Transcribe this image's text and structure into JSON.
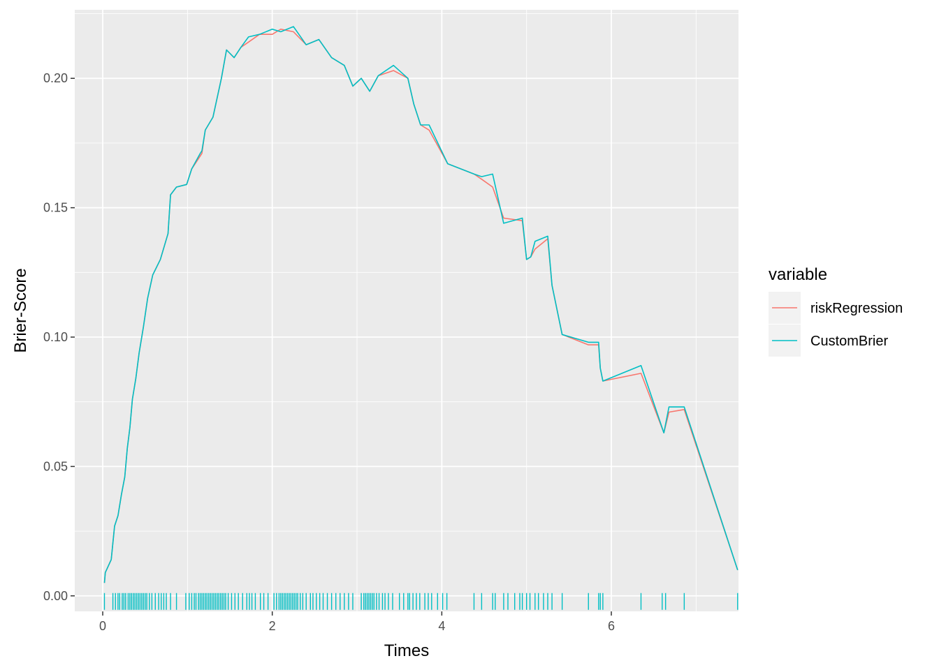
{
  "chart_data": {
    "type": "line",
    "xlabel": "Times",
    "ylabel": "Brier-Score",
    "xlim": [
      -0.33,
      7.5
    ],
    "ylim": [
      -0.006,
      0.2265
    ],
    "x_ticks": [
      0,
      2,
      4,
      6
    ],
    "x_tick_labels": [
      "0",
      "2",
      "4",
      "6"
    ],
    "y_ticks": [
      0.0,
      0.05,
      0.1,
      0.15,
      0.2
    ],
    "y_tick_labels": [
      "0.00",
      "0.05",
      "0.10",
      "0.15",
      "0.20"
    ],
    "grid": true,
    "legend": {
      "title": "variable",
      "position": "right",
      "entries": [
        "riskRegression",
        "CustomBrier"
      ]
    },
    "series": [
      {
        "name": "riskRegression",
        "color": "#F8766D",
        "points": [
          [
            0.02,
            0.005
          ],
          [
            0.03,
            0.009
          ],
          [
            0.1,
            0.014
          ],
          [
            0.14,
            0.027
          ],
          [
            0.18,
            0.031
          ],
          [
            0.22,
            0.039
          ],
          [
            0.26,
            0.046
          ],
          [
            0.29,
            0.057
          ],
          [
            0.32,
            0.065
          ],
          [
            0.35,
            0.076
          ],
          [
            0.39,
            0.084
          ],
          [
            0.43,
            0.094
          ],
          [
            0.48,
            0.104
          ],
          [
            0.53,
            0.115
          ],
          [
            0.59,
            0.124
          ],
          [
            0.68,
            0.13
          ],
          [
            0.77,
            0.14
          ],
          [
            0.8,
            0.155
          ],
          [
            0.87,
            0.158
          ],
          [
            0.99,
            0.159
          ],
          [
            1.05,
            0.165
          ],
          [
            1.15,
            0.17
          ],
          [
            1.17,
            0.171
          ],
          [
            1.21,
            0.18
          ],
          [
            1.3,
            0.185
          ],
          [
            1.4,
            0.2
          ],
          [
            1.46,
            0.211
          ],
          [
            1.55,
            0.208
          ],
          [
            1.63,
            0.212
          ],
          [
            1.72,
            0.214
          ],
          [
            1.85,
            0.217
          ],
          [
            2.0,
            0.217
          ],
          [
            2.1,
            0.219
          ],
          [
            2.25,
            0.218
          ],
          [
            2.4,
            0.213
          ],
          [
            2.55,
            0.215
          ],
          [
            2.7,
            0.208
          ],
          [
            2.85,
            0.205
          ],
          [
            2.95,
            0.197
          ],
          [
            3.05,
            0.2
          ],
          [
            3.15,
            0.195
          ],
          [
            3.25,
            0.201
          ],
          [
            3.43,
            0.203
          ],
          [
            3.6,
            0.2
          ],
          [
            3.67,
            0.19
          ],
          [
            3.75,
            0.182
          ],
          [
            3.85,
            0.18
          ],
          [
            4.07,
            0.167
          ],
          [
            4.38,
            0.163
          ],
          [
            4.47,
            0.161
          ],
          [
            4.6,
            0.158
          ],
          [
            4.73,
            0.146
          ],
          [
            4.95,
            0.145
          ],
          [
            5.0,
            0.13
          ],
          [
            5.05,
            0.131
          ],
          [
            5.1,
            0.134
          ],
          [
            5.25,
            0.138
          ],
          [
            5.3,
            0.12
          ],
          [
            5.42,
            0.101
          ],
          [
            5.73,
            0.097
          ],
          [
            5.85,
            0.097
          ],
          [
            5.87,
            0.088
          ],
          [
            5.9,
            0.083
          ],
          [
            6.35,
            0.086
          ],
          [
            6.62,
            0.063
          ],
          [
            6.68,
            0.071
          ],
          [
            6.86,
            0.072
          ],
          [
            7.49,
            0.01
          ]
        ]
      },
      {
        "name": "CustomBrier",
        "color": "#00BFC4",
        "points": [
          [
            0.02,
            0.005
          ],
          [
            0.03,
            0.009
          ],
          [
            0.1,
            0.014
          ],
          [
            0.14,
            0.027
          ],
          [
            0.18,
            0.031
          ],
          [
            0.22,
            0.039
          ],
          [
            0.26,
            0.046
          ],
          [
            0.29,
            0.057
          ],
          [
            0.32,
            0.065
          ],
          [
            0.35,
            0.076
          ],
          [
            0.39,
            0.084
          ],
          [
            0.43,
            0.094
          ],
          [
            0.48,
            0.104
          ],
          [
            0.53,
            0.115
          ],
          [
            0.59,
            0.124
          ],
          [
            0.68,
            0.13
          ],
          [
            0.77,
            0.14
          ],
          [
            0.8,
            0.155
          ],
          [
            0.87,
            0.158
          ],
          [
            0.99,
            0.159
          ],
          [
            1.05,
            0.165
          ],
          [
            1.15,
            0.171
          ],
          [
            1.17,
            0.172
          ],
          [
            1.21,
            0.18
          ],
          [
            1.3,
            0.185
          ],
          [
            1.4,
            0.2
          ],
          [
            1.46,
            0.211
          ],
          [
            1.55,
            0.208
          ],
          [
            1.63,
            0.212
          ],
          [
            1.72,
            0.216
          ],
          [
            1.85,
            0.217
          ],
          [
            2.0,
            0.219
          ],
          [
            2.1,
            0.218
          ],
          [
            2.25,
            0.22
          ],
          [
            2.4,
            0.213
          ],
          [
            2.55,
            0.215
          ],
          [
            2.7,
            0.208
          ],
          [
            2.85,
            0.205
          ],
          [
            2.95,
            0.197
          ],
          [
            3.05,
            0.2
          ],
          [
            3.15,
            0.195
          ],
          [
            3.25,
            0.201
          ],
          [
            3.43,
            0.205
          ],
          [
            3.6,
            0.2
          ],
          [
            3.67,
            0.19
          ],
          [
            3.75,
            0.182
          ],
          [
            3.85,
            0.182
          ],
          [
            4.07,
            0.167
          ],
          [
            4.38,
            0.163
          ],
          [
            4.47,
            0.162
          ],
          [
            4.6,
            0.163
          ],
          [
            4.73,
            0.144
          ],
          [
            4.95,
            0.146
          ],
          [
            5.0,
            0.13
          ],
          [
            5.05,
            0.131
          ],
          [
            5.1,
            0.137
          ],
          [
            5.25,
            0.139
          ],
          [
            5.3,
            0.12
          ],
          [
            5.42,
            0.101
          ],
          [
            5.73,
            0.098
          ],
          [
            5.85,
            0.098
          ],
          [
            5.87,
            0.088
          ],
          [
            5.9,
            0.083
          ],
          [
            6.35,
            0.089
          ],
          [
            6.62,
            0.063
          ],
          [
            6.68,
            0.073
          ],
          [
            6.86,
            0.073
          ],
          [
            7.49,
            0.01
          ]
        ]
      }
    ],
    "rug_x": [
      0.02,
      0.12,
      0.15,
      0.18,
      0.2,
      0.23,
      0.25,
      0.27,
      0.3,
      0.32,
      0.34,
      0.36,
      0.38,
      0.4,
      0.42,
      0.44,
      0.46,
      0.48,
      0.5,
      0.52,
      0.55,
      0.58,
      0.62,
      0.66,
      0.69,
      0.72,
      0.75,
      0.8,
      0.87,
      0.98,
      1.02,
      1.05,
      1.08,
      1.1,
      1.13,
      1.15,
      1.17,
      1.19,
      1.21,
      1.23,
      1.25,
      1.27,
      1.29,
      1.31,
      1.33,
      1.35,
      1.37,
      1.39,
      1.41,
      1.43,
      1.45,
      1.48,
      1.52,
      1.56,
      1.6,
      1.65,
      1.7,
      1.73,
      1.76,
      1.8,
      1.86,
      1.9,
      1.95,
      2.02,
      2.05,
      2.08,
      2.1,
      2.12,
      2.14,
      2.16,
      2.18,
      2.2,
      2.22,
      2.24,
      2.26,
      2.28,
      2.3,
      2.33,
      2.36,
      2.4,
      2.45,
      2.48,
      2.52,
      2.56,
      2.6,
      2.65,
      2.7,
      2.75,
      2.8,
      2.85,
      2.9,
      2.95,
      3.05,
      3.08,
      3.1,
      3.12,
      3.14,
      3.16,
      3.18,
      3.2,
      3.23,
      3.26,
      3.3,
      3.33,
      3.37,
      3.42,
      3.5,
      3.55,
      3.6,
      3.62,
      3.66,
      3.7,
      3.74,
      3.8,
      3.84,
      3.88,
      3.95,
      4.01,
      4.06,
      4.38,
      4.47,
      4.6,
      4.63,
      4.73,
      4.78,
      4.86,
      4.92,
      4.95,
      5.0,
      5.04,
      5.1,
      5.14,
      5.2,
      5.25,
      5.3,
      5.42,
      5.73,
      5.85,
      5.87,
      5.9,
      6.35,
      6.6,
      6.64,
      6.86,
      7.49
    ]
  }
}
